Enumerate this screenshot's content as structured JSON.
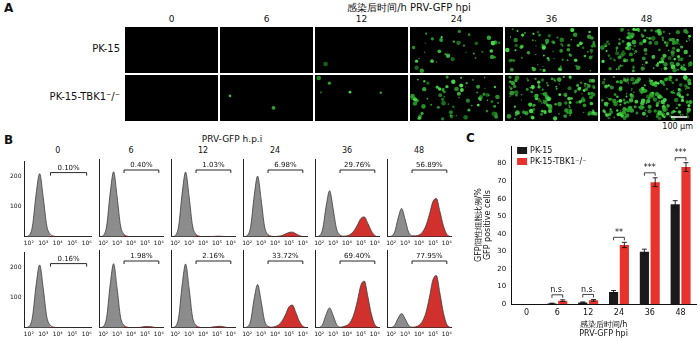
{
  "panel_a": {
    "label": "A",
    "title": "感染后时间/h PRV-GFP hpi",
    "columns": [
      "0",
      "6",
      "12",
      "24",
      "36",
      "48"
    ],
    "rows": [
      "PK-15",
      "PK-15-TBK1⁻/⁻"
    ],
    "scale_bar": "100 μm"
  },
  "panel_b": {
    "label": "B",
    "title": "PRV-GFP h.p.i",
    "columns": [
      "0",
      "6",
      "12",
      "24",
      "36",
      "48"
    ]
  },
  "panel_c": {
    "label": "C"
  },
  "chart_data": [
    {
      "type": "area",
      "annotation": "0.10%",
      "x": [
        50,
        100,
        178,
        316,
        562,
        1000,
        1778,
        3162,
        5623,
        10000,
        17783,
        31623,
        56234,
        100000,
        177828,
        316228,
        562341,
        1000000,
        2000000
      ],
      "values": [
        0,
        4,
        35,
        140,
        210,
        130,
        35,
        8,
        2,
        0,
        0,
        0,
        0,
        0,
        0,
        0,
        0,
        0,
        0
      ],
      "xlim": [
        50,
        2000000
      ],
      "xticks": [
        {
          "value": 100,
          "label": "10²"
        },
        {
          "value": 1000,
          "label": "10³"
        },
        {
          "value": 10000,
          "label": "10⁴"
        },
        {
          "value": 100000,
          "label": "10⁵"
        },
        {
          "value": 1000000,
          "label": "10⁶"
        }
      ],
      "ylim": [
        0,
        250
      ],
      "yticks": [
        100,
        200
      ],
      "log": "x",
      "grid": false,
      "gate": [
        3162,
        1000000
      ],
      "color": "#8c8c8c"
    },
    {
      "type": "area",
      "annotation": "0.40%",
      "x": [
        50,
        100,
        178,
        316,
        562,
        1000,
        1778,
        3162,
        5623,
        10000,
        17783,
        31623,
        56234,
        100000,
        177828,
        316228,
        562341,
        1000000,
        2000000
      ],
      "values": [
        0,
        4,
        35,
        139,
        209,
        129,
        35,
        8,
        2,
        0,
        0,
        0,
        1,
        1,
        1,
        1,
        0,
        0,
        0
      ],
      "xlim": [
        50,
        2000000
      ],
      "xticks": [
        {
          "value": 100,
          "label": "10²"
        },
        {
          "value": 1000,
          "label": "10³"
        },
        {
          "value": 10000,
          "label": "10⁴"
        },
        {
          "value": 100000,
          "label": "10⁵"
        },
        {
          "value": 1000000,
          "label": "10⁶"
        }
      ],
      "ylim": [
        0,
        250
      ],
      "yticks": [
        100,
        200
      ],
      "log": "x",
      "grid": false,
      "gate": [
        3162,
        1000000
      ],
      "color": "#8c8c8c",
      "tick_labels": "x"
    },
    {
      "type": "area",
      "annotation": "1.03%",
      "x": [
        50,
        100,
        178,
        316,
        562,
        1000,
        1778,
        3162,
        5623,
        10000,
        17783,
        31623,
        56234,
        100000,
        177828,
        316228,
        562341,
        1000000,
        2000000
      ],
      "values": [
        0,
        4,
        35,
        139,
        208,
        129,
        35,
        8,
        2,
        0,
        0,
        1,
        1,
        2,
        2,
        1,
        1,
        0,
        0
      ],
      "xlim": [
        50,
        2000000
      ],
      "xticks": [
        {
          "value": 100,
          "label": "10²"
        },
        {
          "value": 1000,
          "label": "10³"
        },
        {
          "value": 10000,
          "label": "10⁴"
        },
        {
          "value": 100000,
          "label": "10⁵"
        },
        {
          "value": 1000000,
          "label": "10⁶"
        }
      ],
      "ylim": [
        0,
        250
      ],
      "yticks": [
        100,
        200
      ],
      "log": "x",
      "grid": false,
      "gate": [
        3162,
        1000000
      ],
      "color": "#8c8c8c",
      "tick_labels": "x"
    },
    {
      "type": "area",
      "annotation": "6.98%",
      "x": [
        50,
        100,
        178,
        316,
        562,
        1000,
        1778,
        3162,
        5623,
        10000,
        17783,
        31623,
        56234,
        100000,
        177828,
        316228,
        562341,
        1000000,
        2000000
      ],
      "values": [
        0,
        4,
        33,
        130,
        195,
        121,
        33,
        7,
        2,
        1,
        2,
        4,
        9,
        14,
        15,
        10,
        4,
        1,
        0
      ],
      "xlim": [
        50,
        2000000
      ],
      "xticks": [
        {
          "value": 100,
          "label": "10²"
        },
        {
          "value": 1000,
          "label": "10³"
        },
        {
          "value": 10000,
          "label": "10⁴"
        },
        {
          "value": 100000,
          "label": "10⁵"
        },
        {
          "value": 1000000,
          "label": "10⁶"
        }
      ],
      "ylim": [
        0,
        250
      ],
      "yticks": [
        100,
        200
      ],
      "log": "x",
      "grid": false,
      "gate": [
        3162,
        1000000
      ],
      "color": "#8c8c8c",
      "tick_labels": "x"
    },
    {
      "type": "area",
      "annotation": "29.76%",
      "x": [
        50,
        100,
        178,
        316,
        562,
        1000,
        1778,
        3162,
        5623,
        10000,
        17783,
        31623,
        56234,
        100000,
        177828,
        316228,
        562341,
        1000000,
        2000000
      ],
      "values": [
        0,
        3,
        25,
        98,
        148,
        91,
        25,
        6,
        2,
        3,
        8,
        19,
        38,
        59,
        64,
        43,
        19,
        4,
        0
      ],
      "xlim": [
        50,
        2000000
      ],
      "xticks": [
        {
          "value": 100,
          "label": "10²"
        },
        {
          "value": 1000,
          "label": "10³"
        },
        {
          "value": 10000,
          "label": "10⁴"
        },
        {
          "value": 100000,
          "label": "10⁵"
        },
        {
          "value": 1000000,
          "label": "10⁶"
        }
      ],
      "ylim": [
        0,
        250
      ],
      "yticks": [
        100,
        200
      ],
      "log": "x",
      "grid": false,
      "gate": [
        3162,
        1000000
      ],
      "color": "#8c8c8c",
      "tick_labels": "x"
    },
    {
      "type": "area",
      "annotation": "56.89%",
      "x": [
        50,
        100,
        178,
        316,
        562,
        1000,
        1778,
        3162,
        5623,
        10000,
        17783,
        31623,
        56234,
        100000,
        177828,
        316228,
        562341,
        1000000,
        2000000
      ],
      "values": [
        0,
        2,
        15,
        60,
        91,
        56,
        15,
        3,
        3,
        6,
        15,
        36,
        72,
        113,
        123,
        82,
        36,
        8,
        0
      ],
      "xlim": [
        50,
        2000000
      ],
      "xticks": [
        {
          "value": 100,
          "label": "10²"
        },
        {
          "value": 1000,
          "label": "10³"
        },
        {
          "value": 10000,
          "label": "10⁴"
        },
        {
          "value": 100000,
          "label": "10⁵"
        },
        {
          "value": 1000000,
          "label": "10⁶"
        }
      ],
      "ylim": [
        0,
        250
      ],
      "yticks": [
        100,
        200
      ],
      "log": "x",
      "grid": false,
      "gate": [
        3162,
        1000000
      ],
      "color": "#8c8c8c",
      "tick_labels": "x"
    },
    {
      "type": "area",
      "annotation": "0.16%",
      "x": [
        50,
        100,
        178,
        316,
        562,
        1000,
        1778,
        3162,
        5623,
        10000,
        17783,
        31623,
        56234,
        100000,
        177828,
        316228,
        562341,
        1000000,
        2000000
      ],
      "values": [
        0,
        4,
        35,
        140,
        209,
        130,
        35,
        8,
        2,
        0,
        0,
        0,
        0,
        0,
        0,
        0,
        0,
        0,
        0
      ],
      "xlim": [
        50,
        2000000
      ],
      "xticks": [
        {
          "value": 100,
          "label": "10²"
        },
        {
          "value": 1000,
          "label": "10³"
        },
        {
          "value": 10000,
          "label": "10⁴"
        },
        {
          "value": 100000,
          "label": "10⁵"
        },
        {
          "value": 1000000,
          "label": "10⁶"
        }
      ],
      "ylim": [
        0,
        250
      ],
      "yticks": [
        100,
        200
      ],
      "log": "x",
      "grid": false,
      "gate": [
        3162,
        1000000
      ],
      "color": "#8c8c8c"
    },
    {
      "type": "area",
      "annotation": "1.98%",
      "x": [
        50,
        100,
        178,
        316,
        562,
        1000,
        1778,
        3162,
        5623,
        10000,
        17783,
        31623,
        56234,
        100000,
        177828,
        316228,
        562341,
        1000000,
        2000000
      ],
      "values": [
        0,
        4,
        34,
        137,
        206,
        127,
        34,
        8,
        2,
        0,
        1,
        1,
        2,
        4,
        4,
        3,
        1,
        0,
        0
      ],
      "xlim": [
        50,
        2000000
      ],
      "xticks": [
        {
          "value": 100,
          "label": "10²"
        },
        {
          "value": 1000,
          "label": "10³"
        },
        {
          "value": 10000,
          "label": "10⁴"
        },
        {
          "value": 100000,
          "label": "10⁵"
        },
        {
          "value": 1000000,
          "label": "10⁶"
        }
      ],
      "ylim": [
        0,
        250
      ],
      "yticks": [
        100,
        200
      ],
      "log": "x",
      "grid": false,
      "gate": [
        3162,
        1000000
      ],
      "color": "#8c8c8c",
      "tick_labels": "x"
    },
    {
      "type": "area",
      "annotation": "2.16%",
      "x": [
        50,
        100,
        178,
        316,
        562,
        1000,
        1778,
        3162,
        5623,
        10000,
        17783,
        31623,
        56234,
        100000,
        177828,
        316228,
        562341,
        1000000,
        2000000
      ],
      "values": [
        0,
        4,
        34,
        137,
        205,
        127,
        34,
        8,
        2,
        0,
        1,
        1,
        3,
        4,
        5,
        3,
        1,
        0,
        0
      ],
      "xlim": [
        50,
        2000000
      ],
      "xticks": [
        {
          "value": 100,
          "label": "10²"
        },
        {
          "value": 1000,
          "label": "10³"
        },
        {
          "value": 10000,
          "label": "10⁴"
        },
        {
          "value": 100000,
          "label": "10⁵"
        },
        {
          "value": 1000000,
          "label": "10⁶"
        }
      ],
      "ylim": [
        0,
        250
      ],
      "yticks": [
        100,
        200
      ],
      "log": "x",
      "grid": false,
      "gate": [
        3162,
        1000000
      ],
      "color": "#8c8c8c",
      "tick_labels": "x"
    },
    {
      "type": "area",
      "annotation": "33.72%",
      "x": [
        50,
        100,
        178,
        316,
        562,
        1000,
        1778,
        3162,
        5623,
        10000,
        17783,
        31623,
        56234,
        100000,
        177828,
        316228,
        562341,
        1000000,
        2000000
      ],
      "values": [
        0,
        3,
        23,
        93,
        139,
        86,
        23,
        5,
        2,
        4,
        9,
        21,
        42,
        67,
        73,
        49,
        21,
        5,
        0
      ],
      "xlim": [
        50,
        2000000
      ],
      "xticks": [
        {
          "value": 100,
          "label": "10²"
        },
        {
          "value": 1000,
          "label": "10³"
        },
        {
          "value": 10000,
          "label": "10⁴"
        },
        {
          "value": 100000,
          "label": "10⁵"
        },
        {
          "value": 1000000,
          "label": "10⁶"
        }
      ],
      "ylim": [
        0,
        250
      ],
      "yticks": [
        100,
        200
      ],
      "log": "x",
      "grid": false,
      "gate": [
        3162,
        1000000
      ],
      "color": "#8c8c8c",
      "tick_labels": "x"
    },
    {
      "type": "area",
      "annotation": "69.40%",
      "x": [
        50,
        100,
        178,
        316,
        562,
        1000,
        1778,
        3162,
        5623,
        10000,
        17783,
        31623,
        56234,
        100000,
        177828,
        316228,
        562341,
        1000000,
        2000000
      ],
      "values": [
        0,
        1,
        11,
        43,
        64,
        40,
        11,
        2,
        4,
        8,
        19,
        44,
        87,
        137,
        150,
        100,
        44,
        10,
        0
      ],
      "xlim": [
        50,
        2000000
      ],
      "xticks": [
        {
          "value": 100,
          "label": "10²"
        },
        {
          "value": 1000,
          "label": "10³"
        },
        {
          "value": 10000,
          "label": "10⁴"
        },
        {
          "value": 100000,
          "label": "10⁵"
        },
        {
          "value": 1000000,
          "label": "10⁶"
        }
      ],
      "ylim": [
        0,
        250
      ],
      "yticks": [
        100,
        200
      ],
      "log": "x",
      "grid": false,
      "gate": [
        3162,
        1000000
      ],
      "color": "#8c8c8c",
      "tick_labels": "x"
    },
    {
      "type": "area",
      "annotation": "77.95%",
      "x": [
        50,
        100,
        178,
        316,
        562,
        1000,
        1778,
        3162,
        5623,
        10000,
        17783,
        31623,
        56234,
        100000,
        177828,
        316228,
        562341,
        1000000,
        2000000
      ],
      "values": [
        0,
        1,
        8,
        31,
        46,
        29,
        8,
        2,
        3,
        8,
        21,
        49,
        98,
        154,
        168,
        112,
        49,
        11,
        0
      ],
      "xlim": [
        50,
        2000000
      ],
      "xticks": [
        {
          "value": 100,
          "label": "10²"
        },
        {
          "value": 1000,
          "label": "10³"
        },
        {
          "value": 10000,
          "label": "10⁴"
        },
        {
          "value": 100000,
          "label": "10⁵"
        },
        {
          "value": 1000000,
          "label": "10⁶"
        }
      ],
      "ylim": [
        0,
        250
      ],
      "yticks": [
        100,
        200
      ],
      "log": "x",
      "grid": false,
      "gate": [
        3162,
        1000000
      ],
      "color": "#8c8c8c",
      "tick_labels": "x"
    },
    {
      "type": "bar",
      "categories": [
        "0",
        "6",
        "12",
        "24",
        "36",
        "48"
      ],
      "series": [
        {
          "name": "PK-15",
          "color": "#1a1a1a",
          "values": [
            0,
            0.4,
            1.0,
            7.0,
            29.8,
            56.9
          ],
          "errors": [
            0,
            0.2,
            0.3,
            0.8,
            1.5,
            2.0
          ]
        },
        {
          "name": "PK-15-TBK1⁻/⁻",
          "color": "#e8322c",
          "values": [
            0,
            2.0,
            2.2,
            33.7,
            69.4,
            78.0
          ],
          "errors": [
            0,
            0.5,
            0.5,
            1.5,
            2.5,
            2.5
          ]
        }
      ],
      "xlabel": [
        "感染后时间/h",
        "PRV-GFP hpi"
      ],
      "ylabel": [
        "GFP阳性细胞比例/%",
        "GFP positive cells"
      ],
      "ylim": [
        0,
        90
      ],
      "yticks": [
        0,
        10,
        20,
        30,
        40,
        50,
        60,
        70,
        80
      ],
      "grid": false,
      "legend": "upper left",
      "significance": [
        {
          "category": "6",
          "label": "n.s."
        },
        {
          "category": "12",
          "label": "n.s."
        },
        {
          "category": "24",
          "label": "**"
        },
        {
          "category": "36",
          "label": "***"
        },
        {
          "category": "48",
          "label": "***"
        }
      ]
    }
  ]
}
